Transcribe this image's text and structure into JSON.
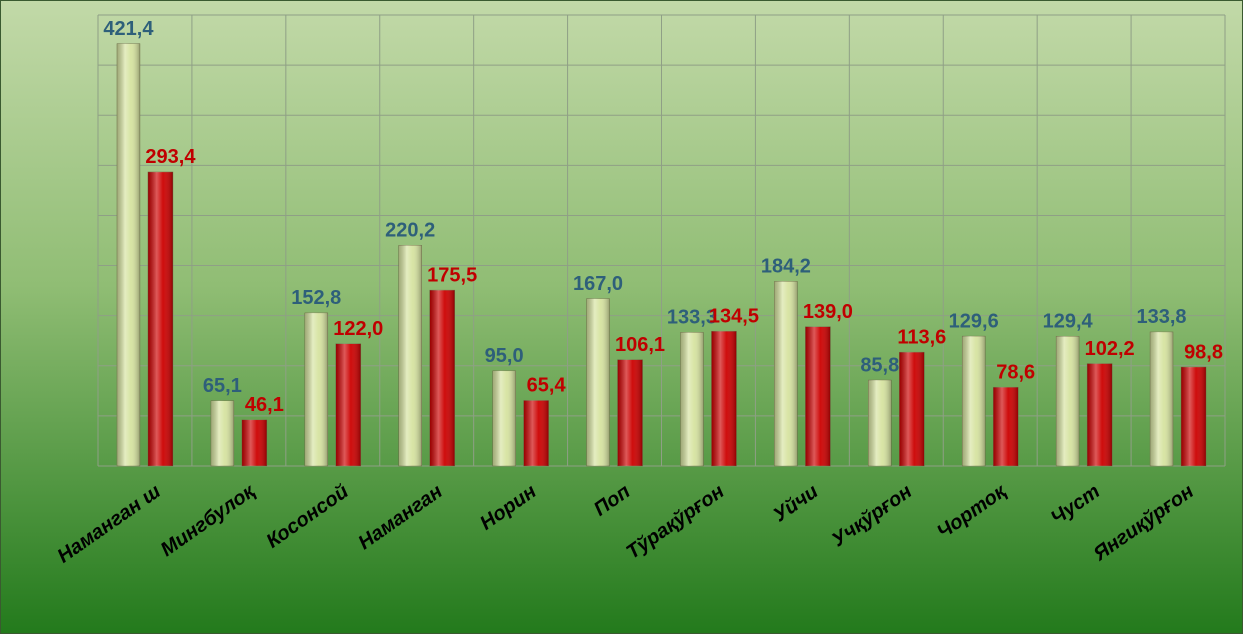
{
  "chart_data": {
    "type": "bar",
    "categories": [
      "Наманган ш",
      "Мингбулоқ",
      "Косонсой",
      "Наманган",
      "Норин",
      "Поп",
      "Тўрақўрғон",
      "Уйчи",
      "Учқўрғон",
      "Чортоқ",
      "Чуст",
      "Янгиқўрғон"
    ],
    "series": [
      {
        "color": "#d6e3a0",
        "label_color": "#2e5f7a",
        "values": [
          421.4,
          65.1,
          152.8,
          220.2,
          95.0,
          167.0,
          133.3,
          184.2,
          85.8,
          129.6,
          129.4,
          133.8
        ],
        "value_labels": [
          "421,4",
          "65,1",
          "152,8",
          "220,2",
          "95,0",
          "167,0",
          "133,3",
          "184,2",
          "85,8",
          "129,6",
          "129,4",
          "133,8"
        ]
      },
      {
        "color": "#cc0000",
        "label_color": "#c00000",
        "values": [
          293.4,
          46.1,
          122.0,
          175.5,
          65.4,
          106.1,
          134.5,
          139.0,
          113.6,
          78.6,
          102.2,
          98.8
        ],
        "value_labels": [
          "293,4",
          "46,1",
          "122,0",
          "175,5",
          "65,4",
          "106,1",
          "134,5",
          "139,0",
          "113,6",
          "78,6",
          "102,2",
          "98,8"
        ]
      }
    ],
    "ylim": [
      0,
      450
    ],
    "yticks": [
      0,
      50,
      100,
      150,
      200,
      250,
      300,
      350,
      400,
      450
    ],
    "grid": true
  }
}
